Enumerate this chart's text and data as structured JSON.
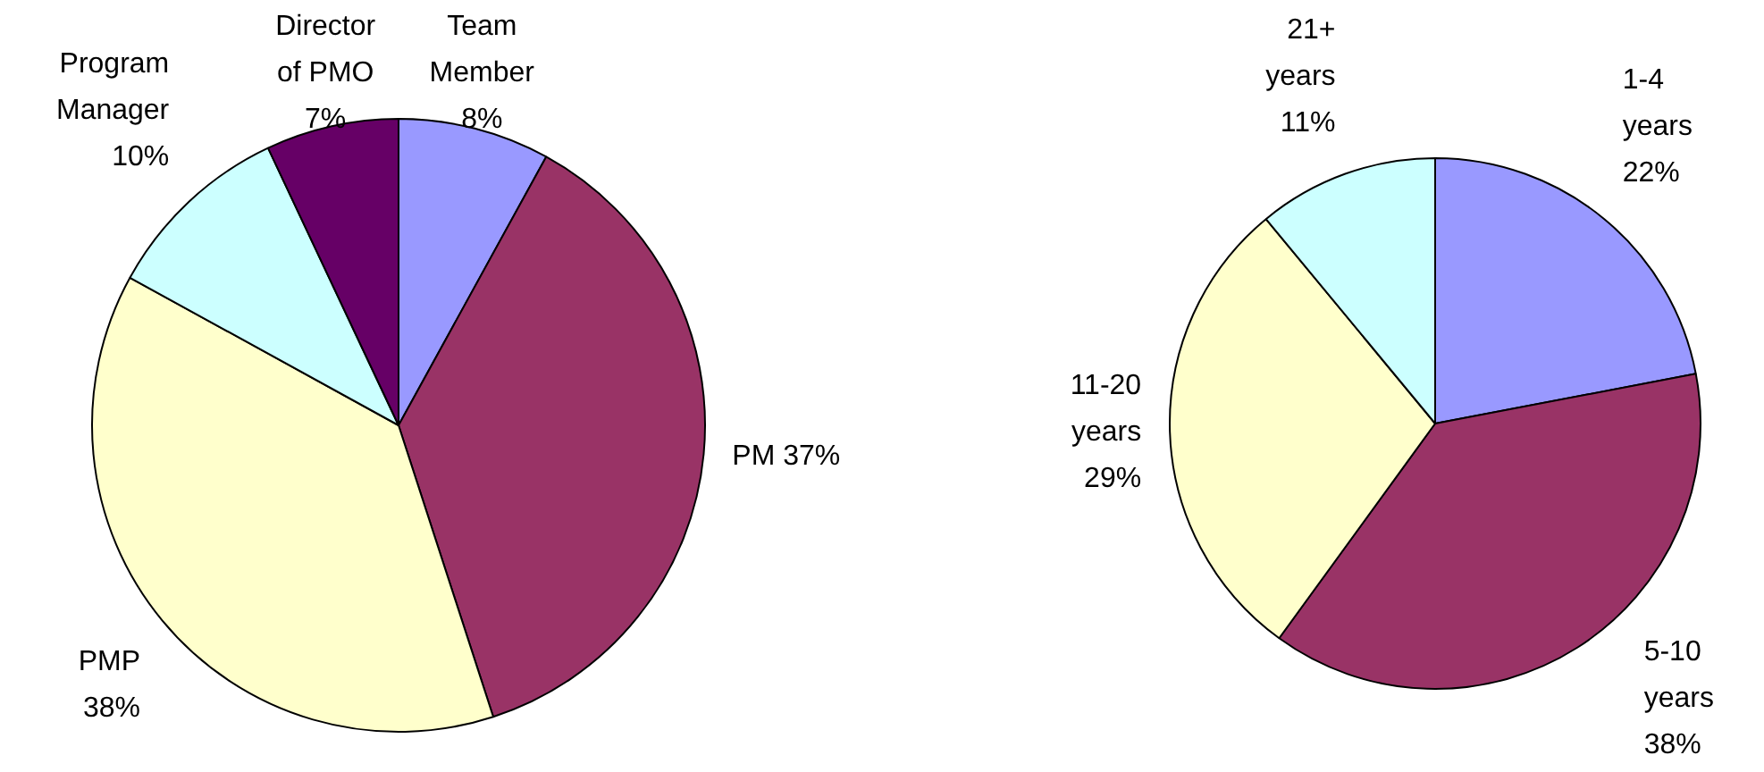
{
  "chart_data": [
    {
      "type": "pie",
      "categories": [
        "Team Member",
        "PM",
        "PMP",
        "Program Manager",
        "Director of PMO"
      ],
      "values": [
        8,
        37,
        38,
        10,
        7
      ],
      "colors": [
        "#9999ff",
        "#993366",
        "#ffffcc",
        "#ccffff",
        "#660066"
      ],
      "value_labels": [
        "8%",
        "37%",
        "38%",
        "10%",
        "7%"
      ]
    },
    {
      "type": "pie",
      "categories": [
        "1-4 years",
        "5-10 years",
        "11-20 years",
        "21+ years"
      ],
      "values": [
        22,
        38,
        29,
        11
      ],
      "colors": [
        "#9999ff",
        "#993366",
        "#ffffcc",
        "#ccffff"
      ],
      "value_labels": [
        "22%",
        "38%",
        "29%",
        "11%"
      ]
    }
  ]
}
